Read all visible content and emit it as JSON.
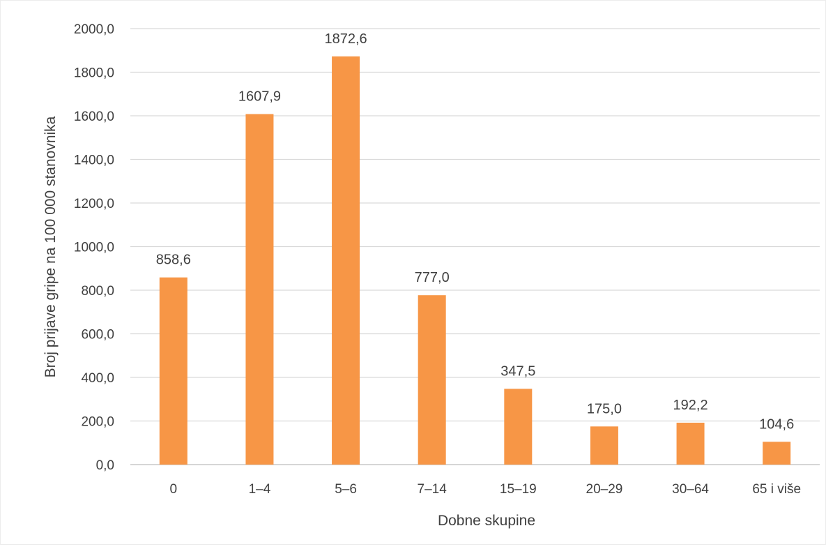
{
  "chart_data": {
    "type": "bar",
    "title": "",
    "xlabel": "Dobne skupine",
    "ylabel": "Broj prijave gripe na 100 000 stanovnika",
    "categories": [
      "0",
      "1–4",
      "5–6",
      "7–14",
      "15–19",
      "20–29",
      "30–64",
      "65 i više"
    ],
    "values": [
      858.6,
      1607.9,
      1872.6,
      777.0,
      347.5,
      175.0,
      192.2,
      104.6
    ],
    "value_labels": [
      "858,6",
      "1607,9",
      "1872,6",
      "777,0",
      "347,5",
      "175,0",
      "192,2",
      "104,6"
    ],
    "ylim": [
      0,
      2000
    ],
    "yticks": [
      0,
      200,
      400,
      600,
      800,
      1000,
      1200,
      1400,
      1600,
      1800,
      2000
    ],
    "ytick_labels": [
      "0,0",
      "200,0",
      "400,0",
      "600,0",
      "800,0",
      "1000,0",
      "1200,0",
      "1400,0",
      "1600,0",
      "1800,0",
      "2000,0"
    ],
    "grid": true,
    "legend": "none",
    "bar_color": "#F79646"
  }
}
